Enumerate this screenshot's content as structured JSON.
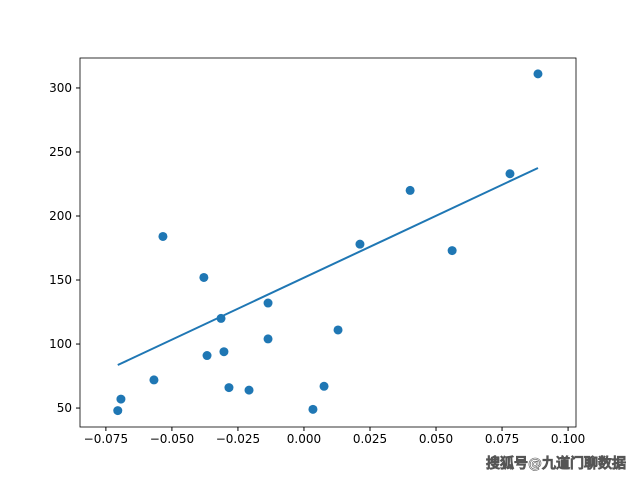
{
  "chart_data": {
    "type": "scatter",
    "x": [
      -0.0705,
      -0.0693,
      -0.0568,
      -0.0534,
      -0.0379,
      -0.0367,
      -0.0314,
      -0.0303,
      -0.0284,
      -0.0208,
      -0.0136,
      -0.0136,
      0.0034,
      0.0076,
      0.0129,
      0.0212,
      0.0402,
      0.0561,
      0.078,
      0.0886
    ],
    "values": [
      48,
      57,
      72,
      184,
      152,
      91,
      120,
      94,
      66,
      64,
      132,
      104,
      49,
      67,
      111,
      178,
      220,
      173,
      233,
      311
    ],
    "color": "#1f77b4",
    "fit_line": {
      "x": [
        -0.0705,
        0.0886
      ],
      "values": [
        83.6,
        237.5
      ],
      "color": "#1f77b4"
    },
    "xlim": [
      -0.0848,
      0.103
    ],
    "ylim": [
      35.2,
      323.4
    ],
    "xticks": [
      {
        "value": -0.075,
        "label": "−0.075"
      },
      {
        "value": -0.05,
        "label": "−0.050"
      },
      {
        "value": -0.025,
        "label": "−0.025"
      },
      {
        "value": 0,
        "label": "0.000"
      },
      {
        "value": 0.025,
        "label": "0.025"
      },
      {
        "value": 0.05,
        "label": "0.050"
      },
      {
        "value": 0.075,
        "label": "0.075"
      },
      {
        "value": 0.1,
        "label": "0.100"
      }
    ],
    "yticks": [
      50,
      100,
      150,
      200,
      250,
      300
    ],
    "watermark": "搜狐号@九道门聊数据"
  }
}
